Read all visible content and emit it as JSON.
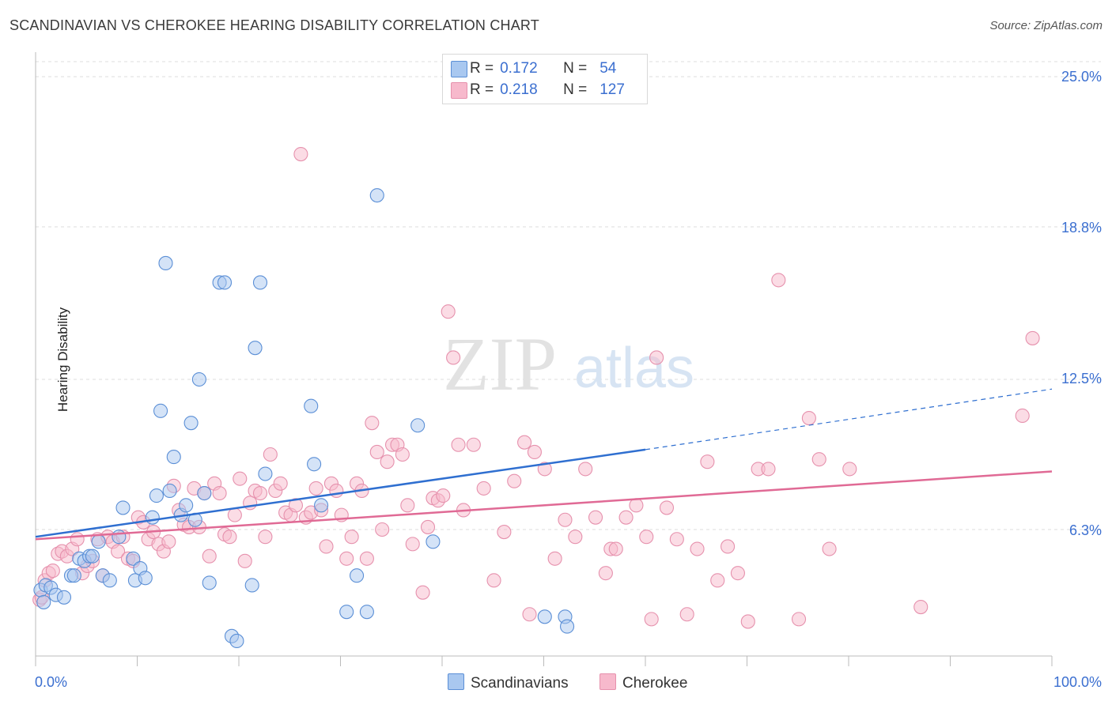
{
  "header": {
    "title": "SCANDINAVIAN VS CHEROKEE HEARING DISABILITY CORRELATION CHART",
    "source": "Source: ZipAtlas.com"
  },
  "watermark": {
    "zip": "ZIP",
    "atlas": "atlas"
  },
  "legend_top": {
    "rows": [
      {
        "r_label": "R =",
        "r_value": "0.172",
        "n_label": "N =",
        "n_value": "54"
      },
      {
        "r_label": "R =",
        "r_value": "0.218",
        "n_label": "N =",
        "n_value": "127"
      }
    ]
  },
  "legend_bottom": {
    "items": [
      "Scandinavians",
      "Cherokee"
    ]
  },
  "colors": {
    "scandinavian_fill": "#a9c8f0",
    "scandinavian_stroke": "#5b8fd6",
    "scandinavian_line": "#2f6fd0",
    "cherokee_fill": "#f7b9cc",
    "cherokee_stroke": "#e691ad",
    "cherokee_line": "#e06a95",
    "axis_label": "#3b6fd0",
    "grid": "#dddddd"
  },
  "chart_data": {
    "type": "scatter",
    "title": "SCANDINAVIAN VS CHEROKEE HEARING DISABILITY CORRELATION CHART",
    "xlabel": "",
    "ylabel": "Hearing Disability",
    "x_tick_labels": [
      "0.0%",
      "100.0%"
    ],
    "y_tick_labels": [
      "25.0%",
      "18.8%",
      "12.5%",
      "6.3%"
    ],
    "y_ticks": [
      25.0,
      18.8,
      12.5,
      6.3
    ],
    "xlim": [
      0,
      100
    ],
    "ylim": [
      0.7,
      25.6
    ],
    "grid": true,
    "legend_position": "top-center",
    "series": [
      {
        "name": "Scandinavians",
        "r": 0.172,
        "n": 54,
        "trend": {
          "x0": 0,
          "y0": 6.0,
          "x1": 60,
          "y1": 9.6,
          "dashed_to_x": 100,
          "dashed_to_y": 12.1
        },
        "points": [
          [
            0.5,
            3.8
          ],
          [
            1.0,
            4.0
          ],
          [
            1.5,
            3.9
          ],
          [
            2.0,
            3.6
          ],
          [
            2.8,
            3.5
          ],
          [
            3.5,
            4.4
          ],
          [
            3.8,
            4.4
          ],
          [
            4.3,
            5.1
          ],
          [
            4.8,
            5.0
          ],
          [
            5.3,
            5.2
          ],
          [
            5.6,
            5.2
          ],
          [
            6.2,
            5.8
          ],
          [
            6.6,
            4.4
          ],
          [
            7.3,
            4.2
          ],
          [
            8.2,
            6.0
          ],
          [
            8.6,
            7.2
          ],
          [
            9.6,
            5.1
          ],
          [
            9.8,
            4.2
          ],
          [
            10.3,
            4.7
          ],
          [
            10.8,
            4.3
          ],
          [
            11.5,
            6.8
          ],
          [
            11.9,
            7.7
          ],
          [
            12.3,
            11.2
          ],
          [
            12.8,
            17.3
          ],
          [
            13.2,
            7.9
          ],
          [
            13.6,
            9.3
          ],
          [
            14.3,
            6.9
          ],
          [
            14.8,
            7.3
          ],
          [
            15.3,
            10.7
          ],
          [
            15.7,
            6.7
          ],
          [
            16.1,
            12.5
          ],
          [
            16.6,
            7.8
          ],
          [
            17.1,
            4.1
          ],
          [
            18.1,
            16.5
          ],
          [
            18.6,
            16.5
          ],
          [
            19.3,
            1.9
          ],
          [
            19.8,
            1.7
          ],
          [
            21.3,
            4.0
          ],
          [
            21.6,
            13.8
          ],
          [
            22.1,
            16.5
          ],
          [
            22.6,
            8.6
          ],
          [
            27.1,
            11.4
          ],
          [
            27.4,
            9.0
          ],
          [
            28.1,
            7.3
          ],
          [
            30.6,
            2.9
          ],
          [
            31.6,
            4.4
          ],
          [
            32.6,
            2.9
          ],
          [
            33.6,
            20.1
          ],
          [
            37.6,
            10.6
          ],
          [
            39.1,
            5.8
          ],
          [
            50.1,
            2.7
          ],
          [
            52.1,
            2.7
          ],
          [
            52.3,
            2.3
          ],
          [
            0.8,
            3.3
          ]
        ]
      },
      {
        "name": "Cherokee",
        "r": 0.218,
        "n": 127,
        "trend": {
          "x0": 0,
          "y0": 5.9,
          "x1": 100,
          "y1": 8.7
        },
        "points": [
          [
            0.4,
            3.4
          ],
          [
            0.9,
            4.2
          ],
          [
            1.3,
            4.5
          ],
          [
            1.7,
            4.6
          ],
          [
            2.2,
            5.3
          ],
          [
            2.6,
            5.4
          ],
          [
            3.1,
            5.2
          ],
          [
            3.6,
            5.5
          ],
          [
            4.1,
            5.9
          ],
          [
            4.6,
            4.5
          ],
          [
            5.1,
            4.8
          ],
          [
            5.6,
            5.0
          ],
          [
            6.1,
            5.9
          ],
          [
            6.6,
            4.4
          ],
          [
            7.1,
            6.0
          ],
          [
            7.6,
            5.8
          ],
          [
            8.1,
            5.4
          ],
          [
            8.6,
            6.0
          ],
          [
            9.1,
            5.1
          ],
          [
            9.6,
            5.0
          ],
          [
            10.1,
            6.8
          ],
          [
            10.6,
            6.6
          ],
          [
            11.1,
            5.9
          ],
          [
            11.6,
            6.2
          ],
          [
            12.1,
            5.7
          ],
          [
            12.6,
            5.4
          ],
          [
            13.1,
            5.8
          ],
          [
            13.6,
            8.1
          ],
          [
            14.1,
            7.1
          ],
          [
            14.6,
            6.5
          ],
          [
            15.1,
            6.4
          ],
          [
            15.6,
            8.0
          ],
          [
            16.1,
            6.4
          ],
          [
            16.6,
            7.8
          ],
          [
            17.1,
            5.2
          ],
          [
            17.6,
            8.2
          ],
          [
            18.1,
            7.8
          ],
          [
            18.6,
            6.1
          ],
          [
            19.1,
            6.0
          ],
          [
            19.6,
            6.9
          ],
          [
            20.1,
            8.4
          ],
          [
            20.6,
            5.0
          ],
          [
            21.1,
            7.4
          ],
          [
            21.6,
            7.9
          ],
          [
            22.1,
            7.8
          ],
          [
            22.6,
            6.0
          ],
          [
            23.1,
            9.4
          ],
          [
            23.6,
            7.9
          ],
          [
            24.1,
            8.2
          ],
          [
            24.6,
            7.0
          ],
          [
            25.1,
            6.9
          ],
          [
            25.6,
            7.3
          ],
          [
            26.1,
            21.8
          ],
          [
            26.6,
            6.8
          ],
          [
            27.1,
            7.0
          ],
          [
            27.6,
            8.0
          ],
          [
            28.1,
            7.1
          ],
          [
            28.6,
            5.6
          ],
          [
            29.1,
            8.2
          ],
          [
            29.6,
            7.9
          ],
          [
            30.1,
            6.9
          ],
          [
            30.6,
            5.1
          ],
          [
            31.1,
            6.0
          ],
          [
            31.6,
            8.2
          ],
          [
            32.1,
            7.9
          ],
          [
            32.6,
            5.1
          ],
          [
            33.1,
            10.7
          ],
          [
            33.6,
            9.5
          ],
          [
            34.1,
            6.3
          ],
          [
            34.6,
            9.1
          ],
          [
            35.1,
            9.8
          ],
          [
            35.6,
            9.8
          ],
          [
            36.1,
            9.4
          ],
          [
            36.6,
            7.3
          ],
          [
            37.1,
            5.7
          ],
          [
            38.1,
            3.7
          ],
          [
            38.6,
            6.4
          ],
          [
            39.1,
            7.6
          ],
          [
            39.6,
            7.5
          ],
          [
            40.1,
            7.7
          ],
          [
            40.6,
            15.3
          ],
          [
            41.1,
            13.4
          ],
          [
            41.6,
            9.8
          ],
          [
            42.1,
            7.1
          ],
          [
            43.1,
            9.8
          ],
          [
            44.1,
            8.0
          ],
          [
            45.1,
            4.2
          ],
          [
            46.1,
            6.2
          ],
          [
            47.1,
            8.3
          ],
          [
            48.1,
            9.9
          ],
          [
            48.6,
            2.8
          ],
          [
            49.1,
            9.5
          ],
          [
            50.1,
            8.8
          ],
          [
            51.1,
            5.1
          ],
          [
            52.1,
            6.7
          ],
          [
            53.1,
            6.0
          ],
          [
            54.1,
            8.8
          ],
          [
            55.1,
            6.8
          ],
          [
            56.1,
            4.5
          ],
          [
            56.6,
            5.5
          ],
          [
            57.1,
            5.5
          ],
          [
            58.1,
            6.8
          ],
          [
            59.1,
            7.3
          ],
          [
            60.1,
            6.0
          ],
          [
            60.6,
            2.6
          ],
          [
            61.1,
            13.4
          ],
          [
            62.1,
            7.2
          ],
          [
            63.1,
            5.9
          ],
          [
            64.1,
            2.8
          ],
          [
            65.1,
            5.5
          ],
          [
            66.1,
            9.1
          ],
          [
            67.1,
            4.2
          ],
          [
            68.1,
            5.6
          ],
          [
            69.1,
            4.5
          ],
          [
            70.1,
            2.5
          ],
          [
            71.1,
            8.8
          ],
          [
            72.1,
            8.8
          ],
          [
            73.1,
            16.6
          ],
          [
            75.1,
            2.6
          ],
          [
            76.1,
            10.9
          ],
          [
            77.1,
            9.2
          ],
          [
            78.1,
            5.5
          ],
          [
            80.1,
            8.8
          ],
          [
            87.1,
            3.1
          ],
          [
            97.1,
            11.0
          ],
          [
            98.1,
            14.2
          ],
          [
            0.6,
            3.5
          ]
        ]
      }
    ]
  }
}
